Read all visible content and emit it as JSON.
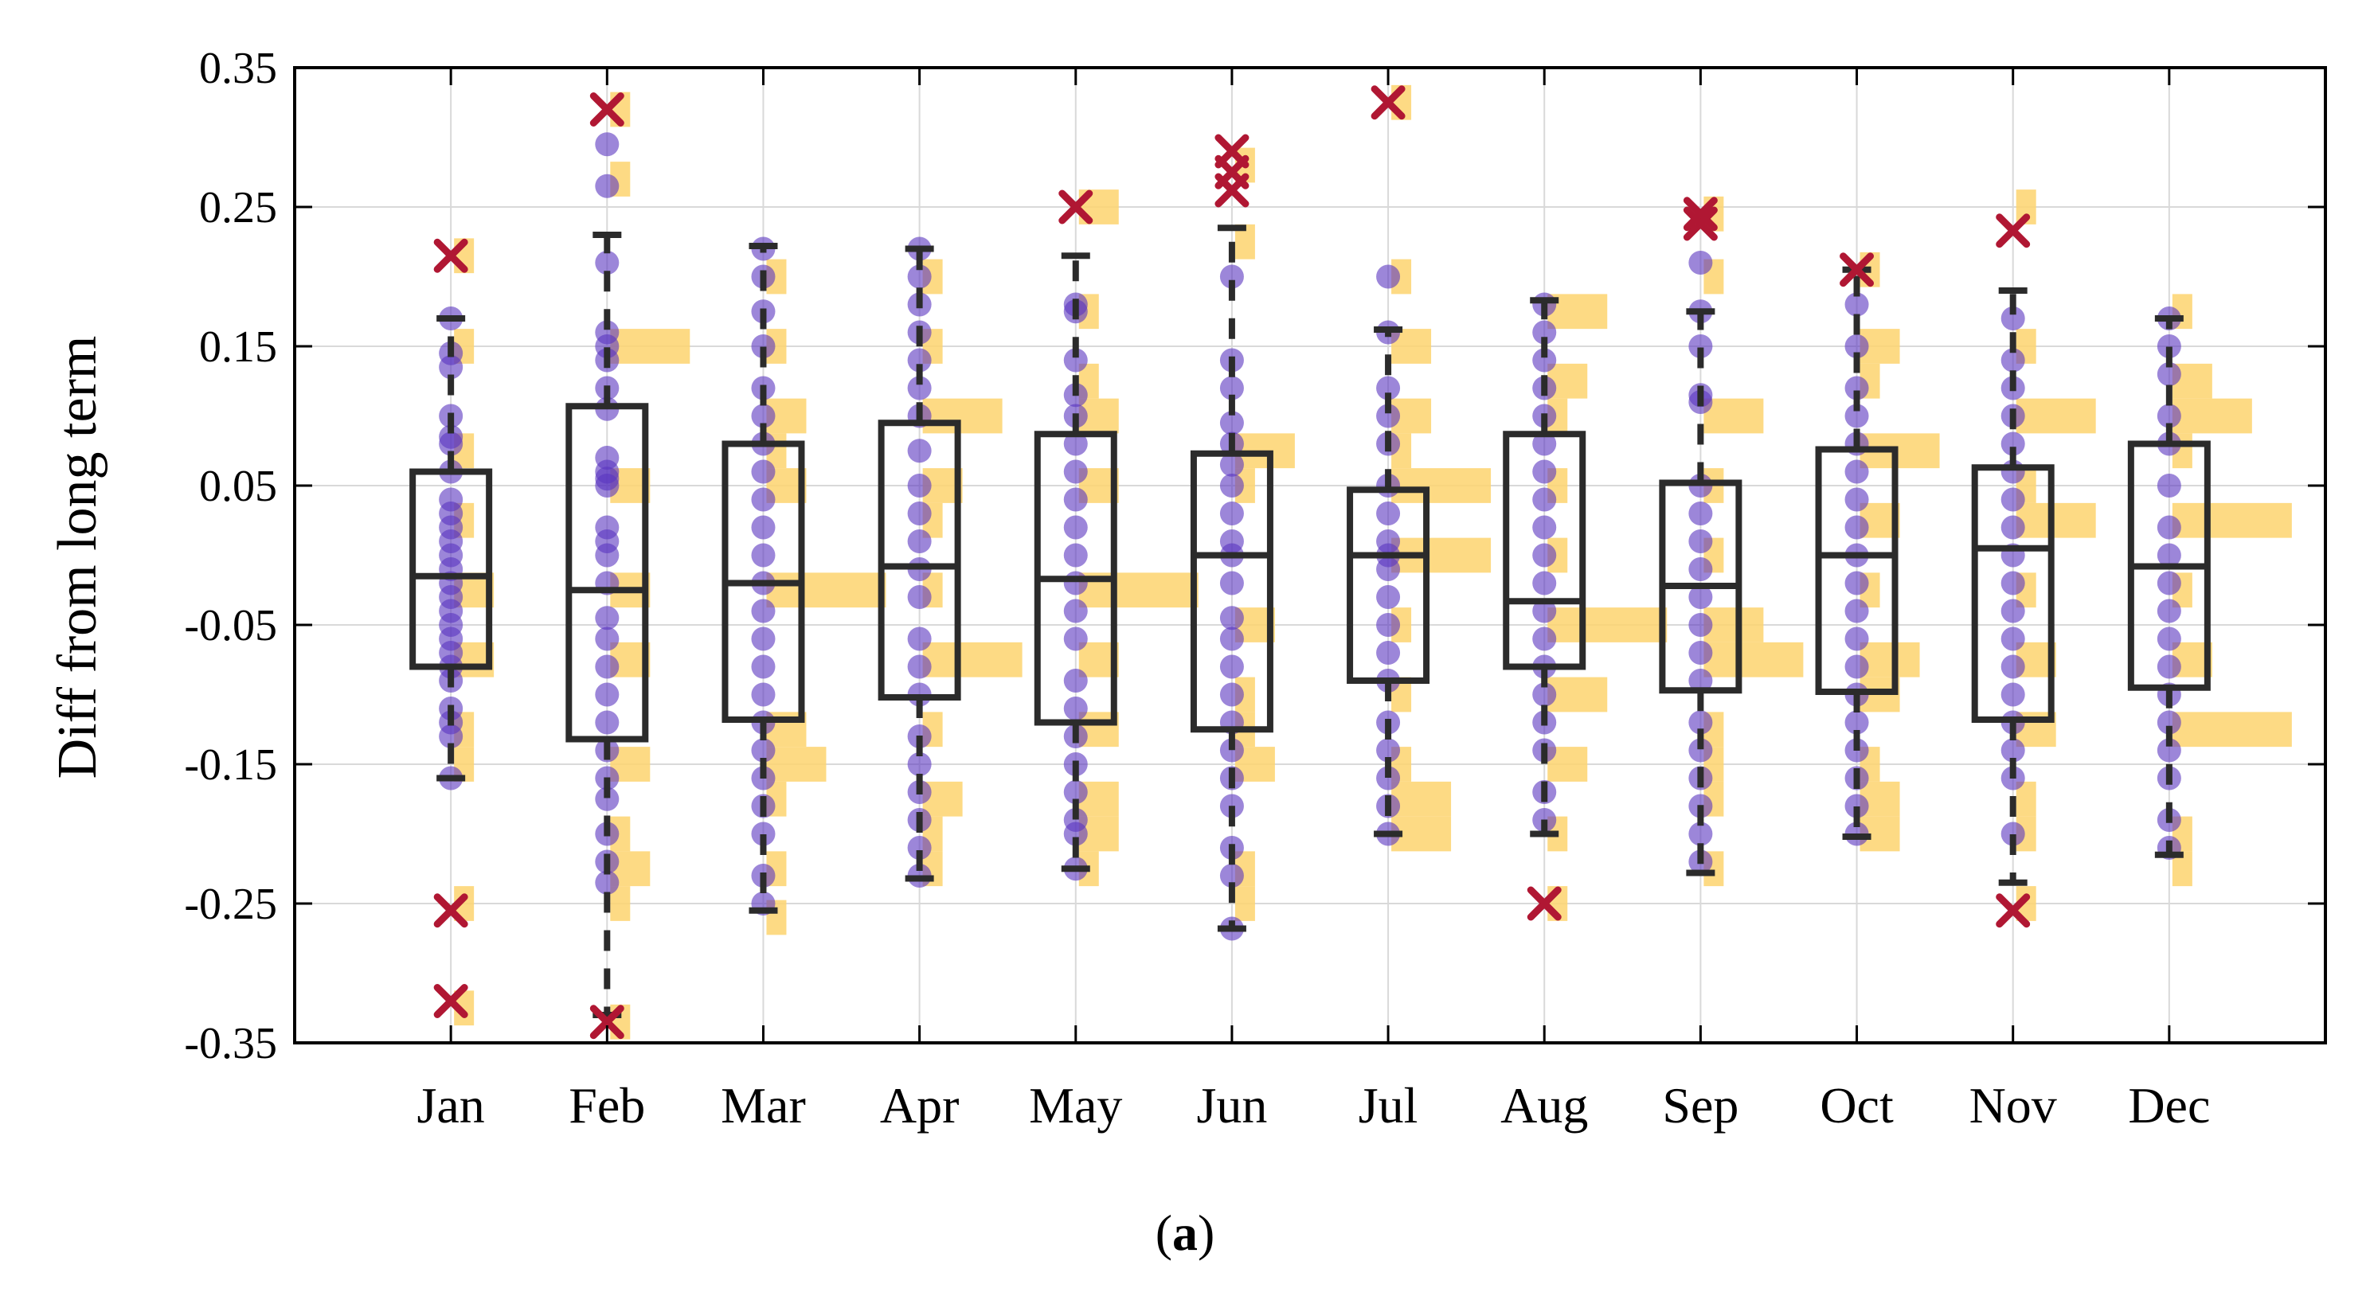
{
  "chart_data": {
    "type": "boxplot",
    "title": "",
    "caption": {
      "open": "(",
      "label": "a",
      "close": ")"
    },
    "xlabel": "",
    "ylabel": "Diff from long term",
    "ylim": [
      -0.35,
      0.35
    ],
    "yticks": [
      "0.35",
      "0.25",
      "0.15",
      "0.05",
      "-0.05",
      "-0.15",
      "-0.25",
      "-0.35"
    ],
    "grid": true,
    "histogram_bin_width": 0.025,
    "histogram_max_count": 6,
    "colors": {
      "box": "#2b2b2b",
      "points": "#5a35c0",
      "histogram": "#fdd36e",
      "outlier": "#b01733",
      "grid": "#d9d9d9",
      "axis": "#000000"
    },
    "months": [
      {
        "label": "Jan",
        "median": -0.015,
        "q1": -0.08,
        "q3": 0.06,
        "whisker_low": -0.16,
        "whisker_high": 0.17,
        "points": [
          0.17,
          0.145,
          0.135,
          0.1,
          0.085,
          0.08,
          0.06,
          0.04,
          0.03,
          0.02,
          0.01,
          0.0,
          -0.01,
          -0.02,
          -0.03,
          -0.04,
          -0.05,
          -0.06,
          -0.07,
          -0.08,
          -0.09,
          -0.11,
          -0.12,
          -0.13,
          -0.16
        ],
        "outliers": [
          0.215,
          -0.255,
          -0.32
        ],
        "histogram": [
          [
            0.215,
            1
          ],
          [
            0.15,
            1
          ],
          [
            0.075,
            1
          ],
          [
            0.025,
            1
          ],
          [
            -0.025,
            2
          ],
          [
            -0.075,
            2
          ],
          [
            -0.125,
            1
          ],
          [
            -0.15,
            1
          ],
          [
            -0.25,
            1
          ],
          [
            -0.325,
            1
          ]
        ]
      },
      {
        "label": "Feb",
        "median": -0.025,
        "q1": -0.132,
        "q3": 0.107,
        "whisker_low": -0.33,
        "whisker_high": 0.23,
        "points": [
          0.295,
          0.265,
          0.21,
          0.16,
          0.15,
          0.14,
          0.12,
          0.105,
          0.07,
          0.06,
          0.055,
          0.05,
          0.02,
          0.01,
          0.0,
          -0.02,
          -0.045,
          -0.06,
          -0.08,
          -0.1,
          -0.12,
          -0.14,
          -0.16,
          -0.175,
          -0.2,
          -0.22,
          -0.235
        ],
        "outliers": [
          0.32,
          -0.335
        ],
        "histogram": [
          [
            0.32,
            1
          ],
          [
            0.27,
            1
          ],
          [
            0.15,
            4
          ],
          [
            0.05,
            2
          ],
          [
            -0.025,
            2
          ],
          [
            -0.075,
            2
          ],
          [
            -0.15,
            2
          ],
          [
            -0.2,
            1
          ],
          [
            -0.225,
            2
          ],
          [
            -0.25,
            1
          ],
          [
            -0.335,
            1
          ]
        ]
      },
      {
        "label": "Mar",
        "median": -0.02,
        "q1": -0.118,
        "q3": 0.08,
        "whisker_low": -0.255,
        "whisker_high": 0.222,
        "points": [
          0.22,
          0.2,
          0.175,
          0.15,
          0.12,
          0.1,
          0.08,
          0.06,
          0.04,
          0.02,
          0.0,
          -0.02,
          -0.04,
          -0.06,
          -0.08,
          -0.1,
          -0.12,
          -0.14,
          -0.16,
          -0.18,
          -0.2,
          -0.23,
          -0.25
        ],
        "outliers": [],
        "histogram": [
          [
            0.2,
            1
          ],
          [
            0.15,
            1
          ],
          [
            0.1,
            2
          ],
          [
            0.075,
            1
          ],
          [
            0.05,
            2
          ],
          [
            -0.025,
            6
          ],
          [
            -0.125,
            2
          ],
          [
            -0.15,
            3
          ],
          [
            -0.175,
            1
          ],
          [
            -0.225,
            1
          ],
          [
            -0.26,
            1
          ]
        ]
      },
      {
        "label": "Apr",
        "median": -0.008,
        "q1": -0.102,
        "q3": 0.095,
        "whisker_low": -0.232,
        "whisker_high": 0.22,
        "points": [
          0.22,
          0.2,
          0.18,
          0.16,
          0.14,
          0.12,
          0.1,
          0.075,
          0.05,
          0.03,
          0.01,
          -0.01,
          -0.03,
          -0.06,
          -0.08,
          -0.1,
          -0.13,
          -0.15,
          -0.17,
          -0.19,
          -0.21,
          -0.23
        ],
        "outliers": [],
        "histogram": [
          [
            0.2,
            1
          ],
          [
            0.15,
            1
          ],
          [
            0.1,
            4
          ],
          [
            0.05,
            2
          ],
          [
            0.025,
            1
          ],
          [
            -0.025,
            1
          ],
          [
            -0.075,
            5
          ],
          [
            -0.125,
            1
          ],
          [
            -0.175,
            2
          ],
          [
            -0.2,
            1
          ],
          [
            -0.225,
            1
          ]
        ]
      },
      {
        "label": "May",
        "median": -0.017,
        "q1": -0.12,
        "q3": 0.087,
        "whisker_low": -0.225,
        "whisker_high": 0.215,
        "points": [
          0.18,
          0.175,
          0.14,
          0.115,
          0.1,
          0.08,
          0.06,
          0.04,
          0.02,
          0.0,
          -0.02,
          -0.04,
          -0.06,
          -0.09,
          -0.11,
          -0.13,
          -0.15,
          -0.17,
          -0.19,
          -0.2,
          -0.225
        ],
        "outliers": [
          0.25
        ],
        "histogram": [
          [
            0.25,
            2
          ],
          [
            0.175,
            1
          ],
          [
            0.125,
            1
          ],
          [
            0.1,
            2
          ],
          [
            0.05,
            2
          ],
          [
            -0.025,
            6
          ],
          [
            -0.075,
            2
          ],
          [
            -0.125,
            2
          ],
          [
            -0.175,
            2
          ],
          [
            -0.2,
            2
          ],
          [
            -0.225,
            1
          ]
        ]
      },
      {
        "label": "Jun",
        "median": 0.0,
        "q1": -0.125,
        "q3": 0.073,
        "whisker_low": -0.268,
        "whisker_high": 0.235,
        "points": [
          0.2,
          0.14,
          0.12,
          0.095,
          0.08,
          0.065,
          0.05,
          0.03,
          0.01,
          0.0,
          -0.02,
          -0.045,
          -0.06,
          -0.08,
          -0.1,
          -0.12,
          -0.14,
          -0.16,
          -0.18,
          -0.21,
          -0.23,
          -0.268
        ],
        "outliers": [
          0.29,
          0.275,
          0.262
        ],
        "histogram": [
          [
            0.28,
            1
          ],
          [
            0.225,
            1
          ],
          [
            0.075,
            3
          ],
          [
            0.05,
            1
          ],
          [
            -0.05,
            2
          ],
          [
            -0.1,
            1
          ],
          [
            -0.125,
            1
          ],
          [
            -0.15,
            2
          ],
          [
            -0.225,
            1
          ],
          [
            -0.25,
            1
          ]
        ]
      },
      {
        "label": "Jul",
        "median": 0.0,
        "q1": -0.09,
        "q3": 0.047,
        "whisker_low": -0.2,
        "whisker_high": 0.162,
        "points": [
          0.2,
          0.16,
          0.12,
          0.1,
          0.08,
          0.05,
          0.03,
          0.01,
          0.0,
          -0.01,
          -0.03,
          -0.05,
          -0.07,
          -0.09,
          -0.12,
          -0.14,
          -0.16,
          -0.18,
          -0.2
        ],
        "outliers": [
          0.325
        ],
        "histogram": [
          [
            0.325,
            1
          ],
          [
            0.2,
            1
          ],
          [
            0.15,
            2
          ],
          [
            0.1,
            2
          ],
          [
            0.075,
            1
          ],
          [
            0.05,
            5
          ],
          [
            0.0,
            5
          ],
          [
            -0.05,
            1
          ],
          [
            -0.1,
            1
          ],
          [
            -0.15,
            1
          ],
          [
            -0.175,
            3
          ],
          [
            -0.2,
            3
          ]
        ]
      },
      {
        "label": "Aug",
        "median": -0.033,
        "q1": -0.08,
        "q3": 0.087,
        "whisker_low": -0.2,
        "whisker_high": 0.183,
        "points": [
          0.18,
          0.16,
          0.14,
          0.12,
          0.1,
          0.08,
          0.06,
          0.04,
          0.02,
          0.0,
          -0.02,
          -0.04,
          -0.06,
          -0.08,
          -0.1,
          -0.12,
          -0.14,
          -0.17,
          -0.19
        ],
        "outliers": [
          -0.25
        ],
        "histogram": [
          [
            0.175,
            3
          ],
          [
            0.125,
            2
          ],
          [
            0.1,
            1
          ],
          [
            0.05,
            1
          ],
          [
            0.0,
            1
          ],
          [
            -0.05,
            6
          ],
          [
            -0.1,
            3
          ],
          [
            -0.15,
            2
          ],
          [
            -0.2,
            1
          ],
          [
            -0.25,
            1
          ]
        ]
      },
      {
        "label": "Sep",
        "median": -0.022,
        "q1": -0.097,
        "q3": 0.052,
        "whisker_low": -0.228,
        "whisker_high": 0.175,
        "points": [
          0.21,
          0.175,
          0.15,
          0.115,
          0.11,
          0.05,
          0.03,
          0.01,
          -0.01,
          -0.03,
          -0.05,
          -0.07,
          -0.09,
          -0.12,
          -0.14,
          -0.16,
          -0.18,
          -0.2,
          -0.22
        ],
        "outliers": [
          0.245,
          0.238
        ],
        "histogram": [
          [
            0.245,
            1
          ],
          [
            0.2,
            1
          ],
          [
            0.1,
            3
          ],
          [
            0.05,
            1
          ],
          [
            0.0,
            1
          ],
          [
            -0.05,
            3
          ],
          [
            -0.075,
            5
          ],
          [
            -0.125,
            1
          ],
          [
            -0.15,
            1
          ],
          [
            -0.175,
            1
          ],
          [
            -0.225,
            1
          ]
        ]
      },
      {
        "label": "Oct",
        "median": 0.0,
        "q1": -0.098,
        "q3": 0.076,
        "whisker_low": -0.202,
        "whisker_high": 0.205,
        "points": [
          0.18,
          0.15,
          0.12,
          0.1,
          0.08,
          0.06,
          0.04,
          0.02,
          0.0,
          -0.02,
          -0.04,
          -0.06,
          -0.08,
          -0.1,
          -0.12,
          -0.14,
          -0.16,
          -0.18,
          -0.2
        ],
        "outliers": [
          0.205
        ],
        "histogram": [
          [
            0.205,
            1
          ],
          [
            0.15,
            2
          ],
          [
            0.125,
            1
          ],
          [
            0.075,
            4
          ],
          [
            0.025,
            2
          ],
          [
            -0.025,
            1
          ],
          [
            -0.075,
            3
          ],
          [
            -0.1,
            2
          ],
          [
            -0.15,
            1
          ],
          [
            -0.175,
            2
          ],
          [
            -0.2,
            2
          ]
        ]
      },
      {
        "label": "Nov",
        "median": 0.005,
        "q1": -0.118,
        "q3": 0.063,
        "whisker_low": -0.235,
        "whisker_high": 0.19,
        "points": [
          0.17,
          0.14,
          0.12,
          0.1,
          0.08,
          0.06,
          0.04,
          0.02,
          0.0,
          -0.02,
          -0.04,
          -0.06,
          -0.08,
          -0.1,
          -0.12,
          -0.14,
          -0.16,
          -0.2
        ],
        "outliers": [
          0.233,
          -0.255
        ],
        "histogram": [
          [
            0.25,
            1
          ],
          [
            0.15,
            1
          ],
          [
            0.1,
            4
          ],
          [
            0.05,
            1
          ],
          [
            0.025,
            4
          ],
          [
            -0.025,
            1
          ],
          [
            -0.075,
            2
          ],
          [
            -0.125,
            2
          ],
          [
            -0.175,
            1
          ],
          [
            -0.2,
            1
          ],
          [
            -0.25,
            1
          ]
        ]
      },
      {
        "label": "Dec",
        "median": -0.008,
        "q1": -0.095,
        "q3": 0.08,
        "whisker_low": -0.215,
        "whisker_high": 0.17,
        "points": [
          0.17,
          0.15,
          0.13,
          0.1,
          0.08,
          0.05,
          0.02,
          0.0,
          -0.02,
          -0.04,
          -0.06,
          -0.08,
          -0.1,
          -0.12,
          -0.14,
          -0.16,
          -0.19,
          -0.21
        ],
        "outliers": [],
        "histogram": [
          [
            0.175,
            1
          ],
          [
            0.125,
            2
          ],
          [
            0.1,
            4
          ],
          [
            0.075,
            1
          ],
          [
            0.025,
            6
          ],
          [
            -0.025,
            1
          ],
          [
            -0.075,
            2
          ],
          [
            -0.125,
            6
          ],
          [
            -0.2,
            1
          ],
          [
            -0.225,
            1
          ]
        ]
      }
    ]
  }
}
